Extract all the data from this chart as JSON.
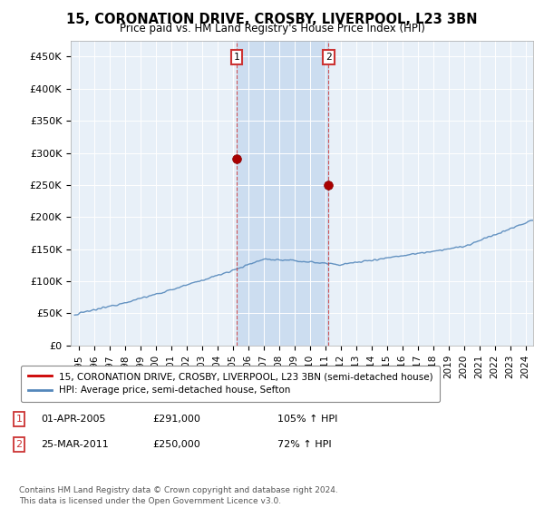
{
  "title": "15, CORONATION DRIVE, CROSBY, LIVERPOOL, L23 3BN",
  "subtitle": "Price paid vs. HM Land Registry's House Price Index (HPI)",
  "legend_line1": "15, CORONATION DRIVE, CROSBY, LIVERPOOL, L23 3BN (semi-detached house)",
  "legend_line2": "HPI: Average price, semi-detached house, Sefton",
  "footer": "Contains HM Land Registry data © Crown copyright and database right 2024.\nThis data is licensed under the Open Government Licence v3.0.",
  "annotation1_label": "1",
  "annotation1_date": "01-APR-2005",
  "annotation1_price": "£291,000",
  "annotation1_hpi": "105% ↑ HPI",
  "annotation2_label": "2",
  "annotation2_date": "25-MAR-2011",
  "annotation2_price": "£250,000",
  "annotation2_hpi": "72% ↑ HPI",
  "sale1_x": 2005.25,
  "sale1_y": 291000,
  "sale2_x": 2011.23,
  "sale2_y": 250000,
  "red_color": "#cc0000",
  "blue_color": "#5588bb",
  "shade_color": "#ccddf0",
  "background_color": "#e8f0f8",
  "grid_color": "#ffffff",
  "ylim": [
    0,
    475000
  ],
  "xlim": [
    1994.5,
    2024.5
  ],
  "yticks": [
    0,
    50000,
    100000,
    150000,
    200000,
    250000,
    300000,
    350000,
    400000,
    450000
  ],
  "ytick_labels": [
    "£0",
    "£50K",
    "£100K",
    "£150K",
    "£200K",
    "£250K",
    "£300K",
    "£350K",
    "£400K",
    "£450K"
  ],
  "xticks": [
    1995,
    1996,
    1997,
    1998,
    1999,
    2000,
    2001,
    2002,
    2003,
    2004,
    2005,
    2006,
    2007,
    2008,
    2009,
    2010,
    2011,
    2012,
    2013,
    2014,
    2015,
    2016,
    2017,
    2018,
    2019,
    2020,
    2021,
    2022,
    2023,
    2024
  ]
}
